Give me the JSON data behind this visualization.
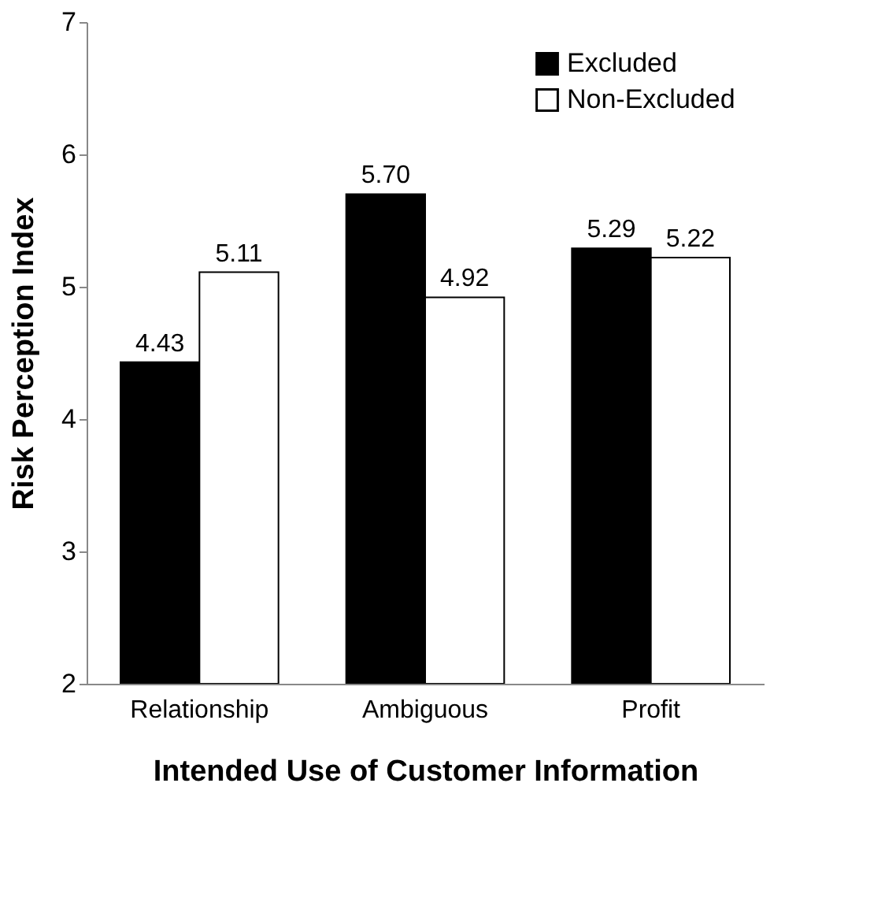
{
  "chart_data": {
    "type": "bar",
    "xlabel": "Intended Use of Customer Information",
    "ylabel": "Risk Perception Index",
    "categories": [
      "Relationship",
      "Ambiguous",
      "Profit"
    ],
    "series": [
      {
        "name": "Excluded",
        "color": "#000000",
        "values": [
          4.43,
          5.7,
          5.29
        ],
        "value_labels": [
          "4.43",
          "5.70",
          "5.29"
        ]
      },
      {
        "name": "Non-Excluded",
        "color": "#ffffff",
        "values": [
          5.11,
          4.92,
          5.22
        ],
        "value_labels": [
          "5.11",
          "4.92",
          "5.22"
        ]
      }
    ],
    "ylim": [
      2,
      7
    ],
    "yticks": [
      2,
      3,
      4,
      5,
      6,
      7
    ],
    "grid": false,
    "legend": "top right"
  }
}
